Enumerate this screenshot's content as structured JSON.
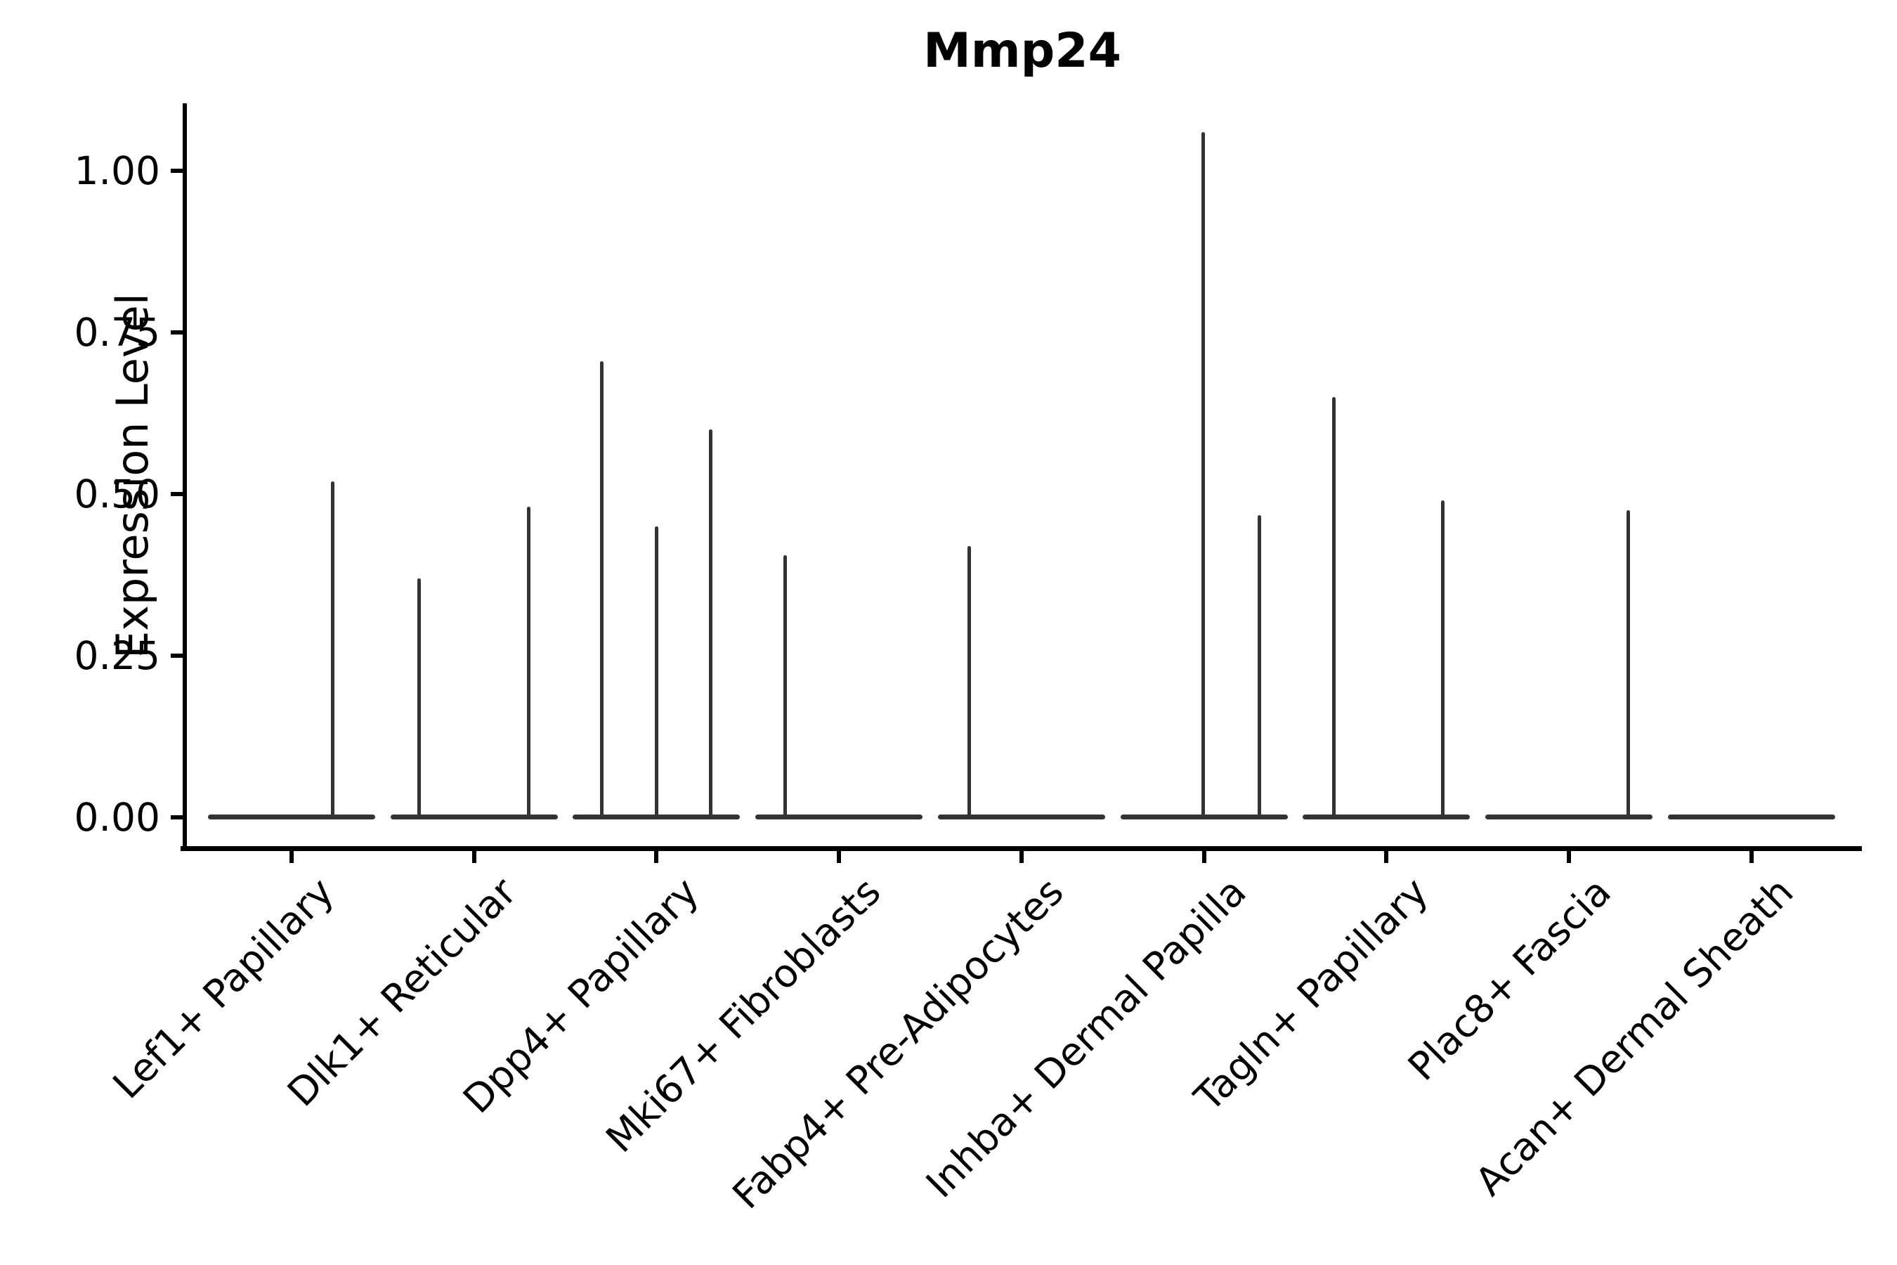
{
  "figure": {
    "title": "Mmp24",
    "background": "#ffffff"
  },
  "style": {
    "violin_color": "#333333",
    "axis_color": "#000000",
    "text_color": "#000000"
  },
  "chart_data": {
    "type": "violin",
    "title": "Mmp24",
    "ylabel": "Expression Level",
    "xlabel": "",
    "grid": false,
    "legend": false,
    "ylim": [
      -0.05,
      1.1
    ],
    "yticks": [
      {
        "value": 1.0,
        "label": "1.00"
      },
      {
        "value": 0.75,
        "label": "0.75"
      },
      {
        "value": 0.5,
        "label": "0.50"
      },
      {
        "value": 0.25,
        "label": "0.25"
      },
      {
        "value": 0.0,
        "label": "0.00"
      }
    ],
    "categories": [
      "Lef1+ Papillary",
      "Dlk1+ Reticular",
      "Dpp4+ Papillary",
      "Mki67+ Fibroblasts",
      "Fabp4+ Pre-Adipocytes",
      "Inhba+ Dermal Papilla",
      "Tagln+ Papillary",
      "Plac8+ Fascia",
      "Acan+ Dermal Sheath"
    ],
    "groups": [
      {
        "category": "Lef1+ Papillary",
        "baseline_value": 0.0,
        "spikes": [
          {
            "dx": 58,
            "value": 0.52
          }
        ]
      },
      {
        "category": "Dlk1+ Reticular",
        "baseline_value": 0.0,
        "spikes": [
          {
            "dx": -78,
            "value": 0.37
          },
          {
            "dx": 78,
            "value": 0.48
          }
        ]
      },
      {
        "category": "Dpp4+ Papillary",
        "baseline_value": 0.0,
        "spikes": [
          {
            "dx": -78,
            "value": 0.705
          },
          {
            "dx": 0,
            "value": 0.45
          },
          {
            "dx": 77,
            "value": 0.6
          }
        ]
      },
      {
        "category": "Mki67+ Fibroblasts",
        "baseline_value": 0.0,
        "spikes": [
          {
            "dx": -77,
            "value": 0.405
          }
        ]
      },
      {
        "category": "Fabp4+ Pre-Adipocytes",
        "baseline_value": 0.0,
        "spikes": [
          {
            "dx": -74,
            "value": 0.42
          }
        ]
      },
      {
        "category": "Inhba+ Dermal Papilla",
        "baseline_value": 0.0,
        "spikes": [
          {
            "dx": -1,
            "value": 1.06
          },
          {
            "dx": 79,
            "value": 0.467
          }
        ]
      },
      {
        "category": "Tagln+ Papillary",
        "baseline_value": 0.0,
        "spikes": [
          {
            "dx": -75,
            "value": 0.65
          },
          {
            "dx": 80,
            "value": 0.49
          }
        ]
      },
      {
        "category": "Plac8+ Fascia",
        "baseline_value": 0.0,
        "spikes": [
          {
            "dx": 85,
            "value": 0.475
          }
        ]
      },
      {
        "category": "Acan+ Dermal Sheath",
        "baseline_value": 0.0,
        "spikes": []
      }
    ]
  }
}
